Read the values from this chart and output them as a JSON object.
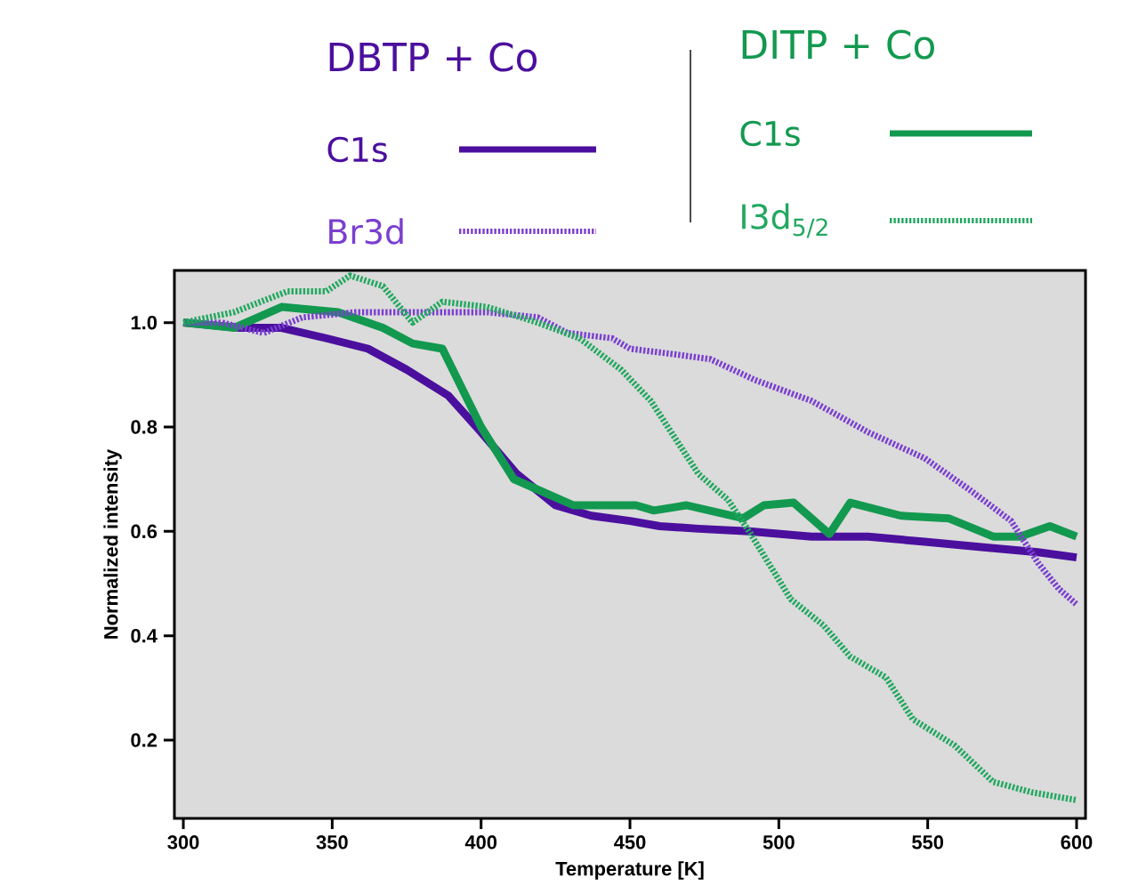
{
  "chart_data": {
    "type": "line",
    "xlabel": "Temperature [K]",
    "ylabel": "Normalized intensity",
    "annotations": [
      "DBTP + Co",
      "DITP + Co"
    ],
    "xlim": [
      297,
      603
    ],
    "ylim": [
      0.05,
      1.1
    ],
    "xticks": [
      300,
      350,
      400,
      450,
      500,
      550,
      600
    ],
    "yticks": [
      0.2,
      0.4,
      0.6,
      0.8,
      {
        "value": 1.0,
        "label": "1.0"
      }
    ],
    "grid": false,
    "legend": "top",
    "marker": "none",
    "series": [
      {
        "name": "C1s",
        "color": "#4b0f9e",
        "line_style": "solid",
        "x": [
          300,
          319,
          333,
          348,
          362,
          375,
          389,
          400,
          412,
          425,
          437,
          450,
          460,
          473,
          490,
          511,
          530,
          549,
          568,
          587,
          600
        ],
        "values": [
          1.0,
          0.99,
          0.99,
          0.97,
          0.95,
          0.91,
          0.86,
          0.79,
          0.71,
          0.65,
          0.63,
          0.62,
          0.61,
          0.605,
          0.6,
          0.59,
          0.59,
          0.58,
          0.57,
          0.56,
          0.55
        ]
      },
      {
        "name": "Br3d",
        "color": "#7a3fd0",
        "line_style": "dotted",
        "x": [
          300,
          313,
          327,
          340,
          358,
          375,
          387,
          402,
          419,
          429,
          444,
          450,
          464,
          477,
          492,
          511,
          530,
          549,
          564,
          578,
          587,
          594,
          600
        ],
        "values": [
          1.0,
          1.0,
          0.98,
          1.01,
          1.02,
          1.02,
          1.02,
          1.02,
          1.01,
          0.98,
          0.97,
          0.95,
          0.94,
          0.93,
          0.89,
          0.85,
          0.79,
          0.74,
          0.68,
          0.62,
          0.54,
          0.49,
          0.46
        ]
      },
      {
        "name": "C1s",
        "color": "#12994f",
        "line_style": "solid",
        "x": [
          300,
          317,
          333,
          352,
          367,
          377,
          387,
          400,
          411,
          419,
          431,
          441,
          452,
          458,
          469,
          488,
          495,
          505,
          517,
          524,
          541,
          557,
          572,
          581,
          591,
          600
        ],
        "values": [
          1.0,
          0.99,
          1.03,
          1.02,
          0.99,
          0.96,
          0.95,
          0.8,
          0.7,
          0.68,
          0.65,
          0.65,
          0.65,
          0.64,
          0.65,
          0.625,
          0.65,
          0.655,
          0.595,
          0.655,
          0.63,
          0.625,
          0.59,
          0.59,
          0.61,
          0.59
        ]
      },
      {
        "name": "I3d$_{5/2}$",
        "color": "#22a860",
        "line_style": "dotted",
        "x": [
          300,
          317,
          335,
          348,
          356,
          367,
          377,
          387,
          402,
          419,
          433,
          447,
          457,
          465,
          473,
          483,
          490,
          504,
          515,
          524,
          536,
          545,
          559,
          572,
          585,
          600
        ],
        "values": [
          1.0,
          1.02,
          1.06,
          1.06,
          1.09,
          1.07,
          1.0,
          1.04,
          1.03,
          1.0,
          0.97,
          0.91,
          0.85,
          0.78,
          0.71,
          0.66,
          0.6,
          0.47,
          0.42,
          0.36,
          0.32,
          0.24,
          0.19,
          0.12,
          0.1,
          0.085
        ]
      }
    ]
  }
}
